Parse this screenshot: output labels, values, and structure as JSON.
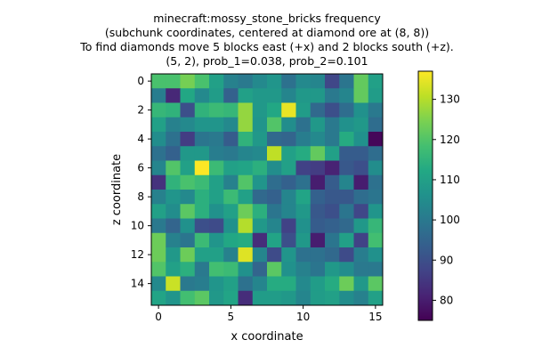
{
  "chart_data": {
    "type": "heatmap",
    "title_lines": [
      "minecraft:mossy_stone_bricks frequency",
      "(subchunk coordinates, centered at diamond ore at (8, 8))",
      "To find diamonds move 5 blocks east (+x) and 2 blocks south (+z).",
      "(5, 2), prob_1=0.038, prob_2=0.101"
    ],
    "xlabel": "x coordinate",
    "ylabel": "z coordinate",
    "x_ticks": [
      0,
      5,
      10,
      15
    ],
    "y_ticks": [
      0,
      2,
      4,
      6,
      8,
      10,
      12,
      14
    ],
    "colorbar_ticks": [
      80,
      90,
      100,
      110,
      120,
      130
    ],
    "vmin": 75,
    "vmax": 137,
    "colormap": "viridis",
    "grid": [
      [
        119,
        119,
        124,
        119,
        110,
        102,
        100,
        104,
        107,
        98,
        104,
        103,
        88,
        99,
        122,
        110
      ],
      [
        101,
        82,
        112,
        104,
        109,
        94,
        110,
        108,
        108,
        103,
        108,
        108,
        100,
        103,
        122,
        109
      ],
      [
        116,
        115,
        90,
        115,
        117,
        116,
        127,
        108,
        112,
        135,
        109,
        96,
        90,
        97,
        106,
        100
      ],
      [
        110,
        102,
        104,
        107,
        107,
        104,
        127,
        107,
        120,
        105,
        98,
        108,
        100,
        106,
        108,
        97
      ],
      [
        105,
        98,
        86,
        99,
        100,
        93,
        115,
        108,
        96,
        95,
        101,
        104,
        100,
        113,
        106,
        76
      ],
      [
        98,
        94,
        108,
        108,
        101,
        100,
        103,
        104,
        131,
        110,
        113,
        122,
        110,
        93,
        93,
        97
      ],
      [
        103,
        120,
        110,
        137,
        117,
        110,
        111,
        114,
        105,
        110,
        87,
        86,
        81,
        92,
        90,
        105
      ],
      [
        84,
        115,
        119,
        117,
        110,
        102,
        120,
        107,
        97,
        94,
        98,
        80,
        93,
        103,
        80,
        98
      ],
      [
        102,
        107,
        104,
        114,
        110,
        117,
        110,
        96,
        94,
        103,
        111,
        94,
        92,
        92,
        97,
        99
      ],
      [
        110,
        105,
        121,
        114,
        106,
        110,
        123,
        114,
        99,
        103,
        108,
        92,
        90,
        99,
        88,
        107
      ],
      [
        100,
        95,
        106,
        90,
        89,
        106,
        130,
        108,
        103,
        87,
        106,
        93,
        94,
        96,
        108,
        116
      ],
      [
        123,
        102,
        99,
        117,
        107,
        112,
        113,
        83,
        111,
        90,
        108,
        80,
        99,
        110,
        87,
        118
      ],
      [
        123,
        108,
        123,
        110,
        110,
        102,
        134,
        103,
        89,
        107,
        98,
        98,
        96,
        89,
        101,
        106
      ],
      [
        120,
        110,
        114,
        100,
        118,
        117,
        106,
        95,
        121,
        106,
        102,
        99,
        108,
        105,
        100,
        100
      ],
      [
        104,
        132,
        100,
        101,
        107,
        110,
        98,
        103,
        113,
        113,
        104,
        109,
        113,
        123,
        108,
        121
      ],
      [
        111,
        107,
        118,
        121,
        108,
        111,
        83,
        109,
        109,
        108,
        103,
        109,
        110,
        105,
        102,
        110
      ]
    ]
  }
}
